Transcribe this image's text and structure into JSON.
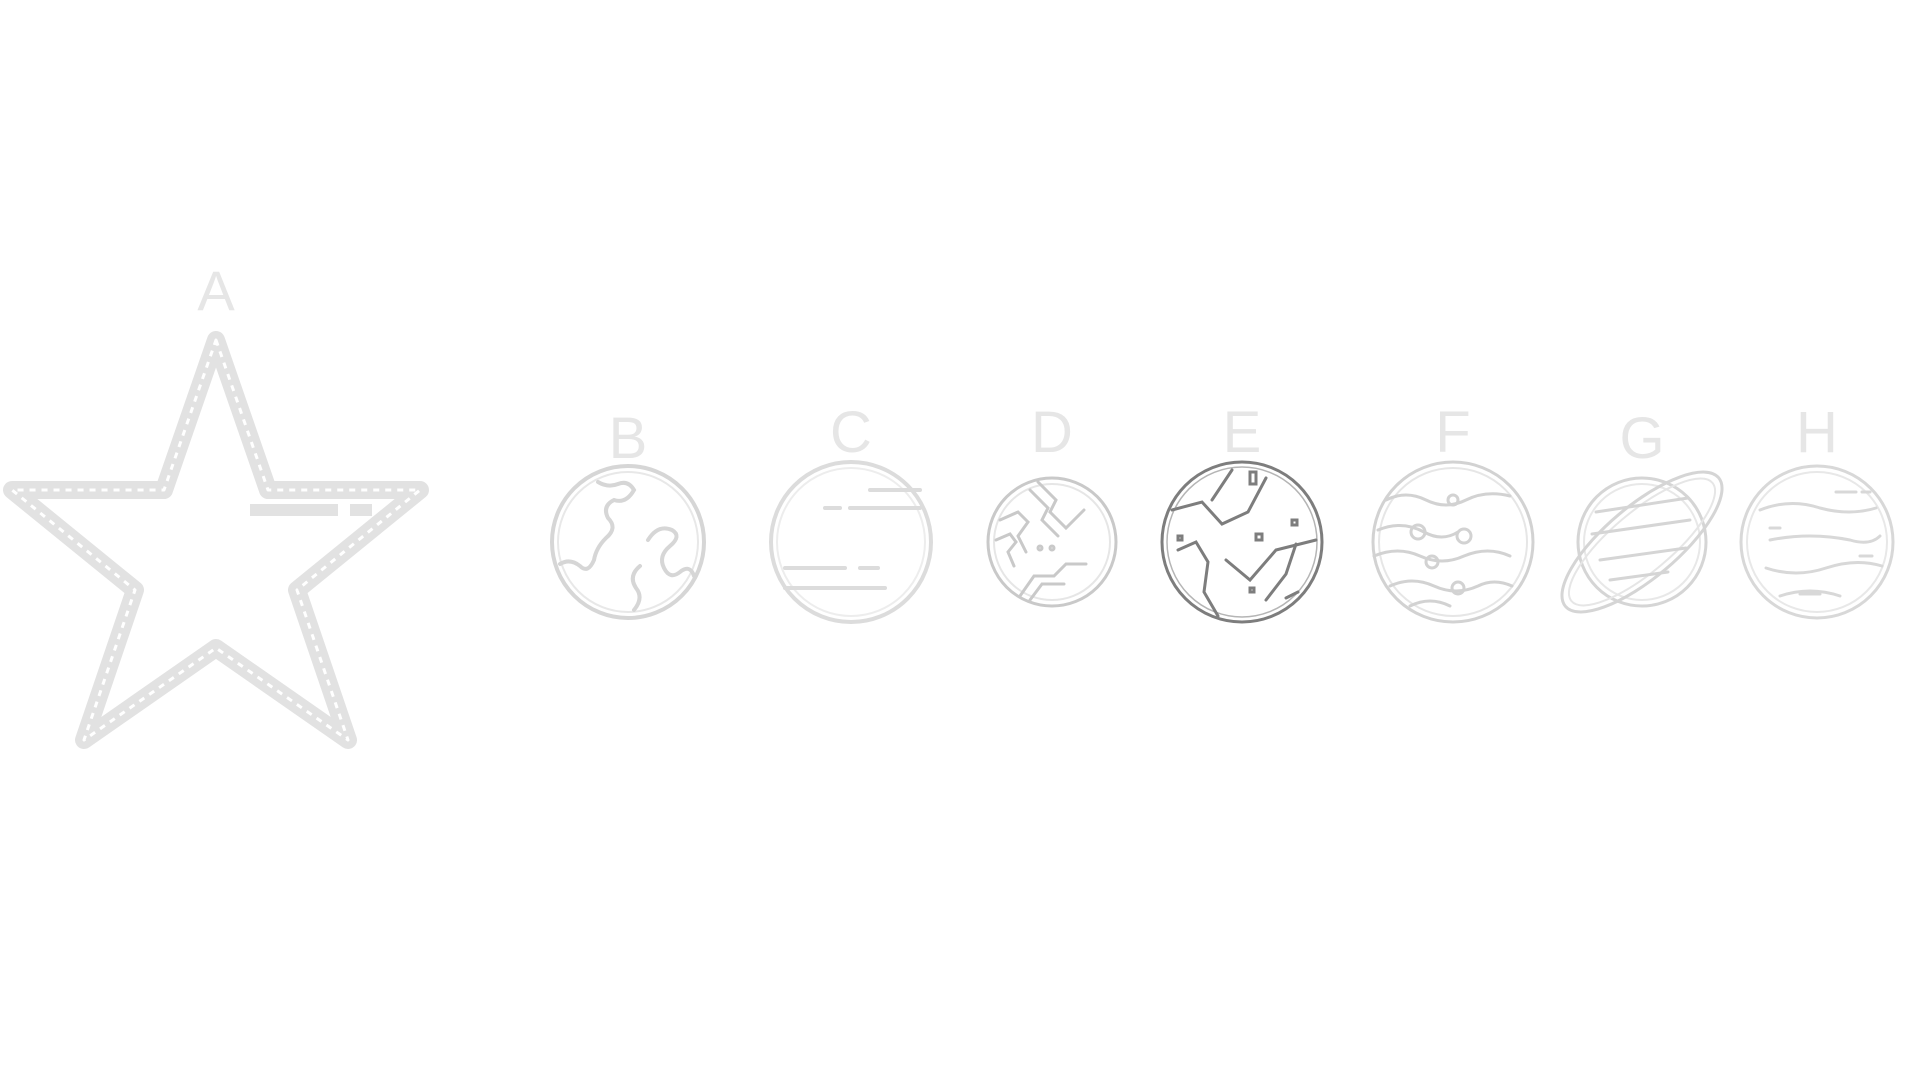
{
  "colors": {
    "background": "#ffffff",
    "light_stroke": "#e2e2e2",
    "medium_stroke": "#cfcfcf",
    "dark_stroke": "#7d7d7d",
    "label": "#e6e6e6"
  },
  "items": [
    {
      "label": "A",
      "icon": "star-icon"
    },
    {
      "label": "B",
      "icon": "planet-icon"
    },
    {
      "label": "C",
      "icon": "planet-icon"
    },
    {
      "label": "D",
      "icon": "planet-icon"
    },
    {
      "label": "E",
      "icon": "planet-icon"
    },
    {
      "label": "F",
      "icon": "planet-icon"
    },
    {
      "label": "G",
      "icon": "ringed-planet-icon"
    },
    {
      "label": "H",
      "icon": "planet-icon"
    }
  ]
}
